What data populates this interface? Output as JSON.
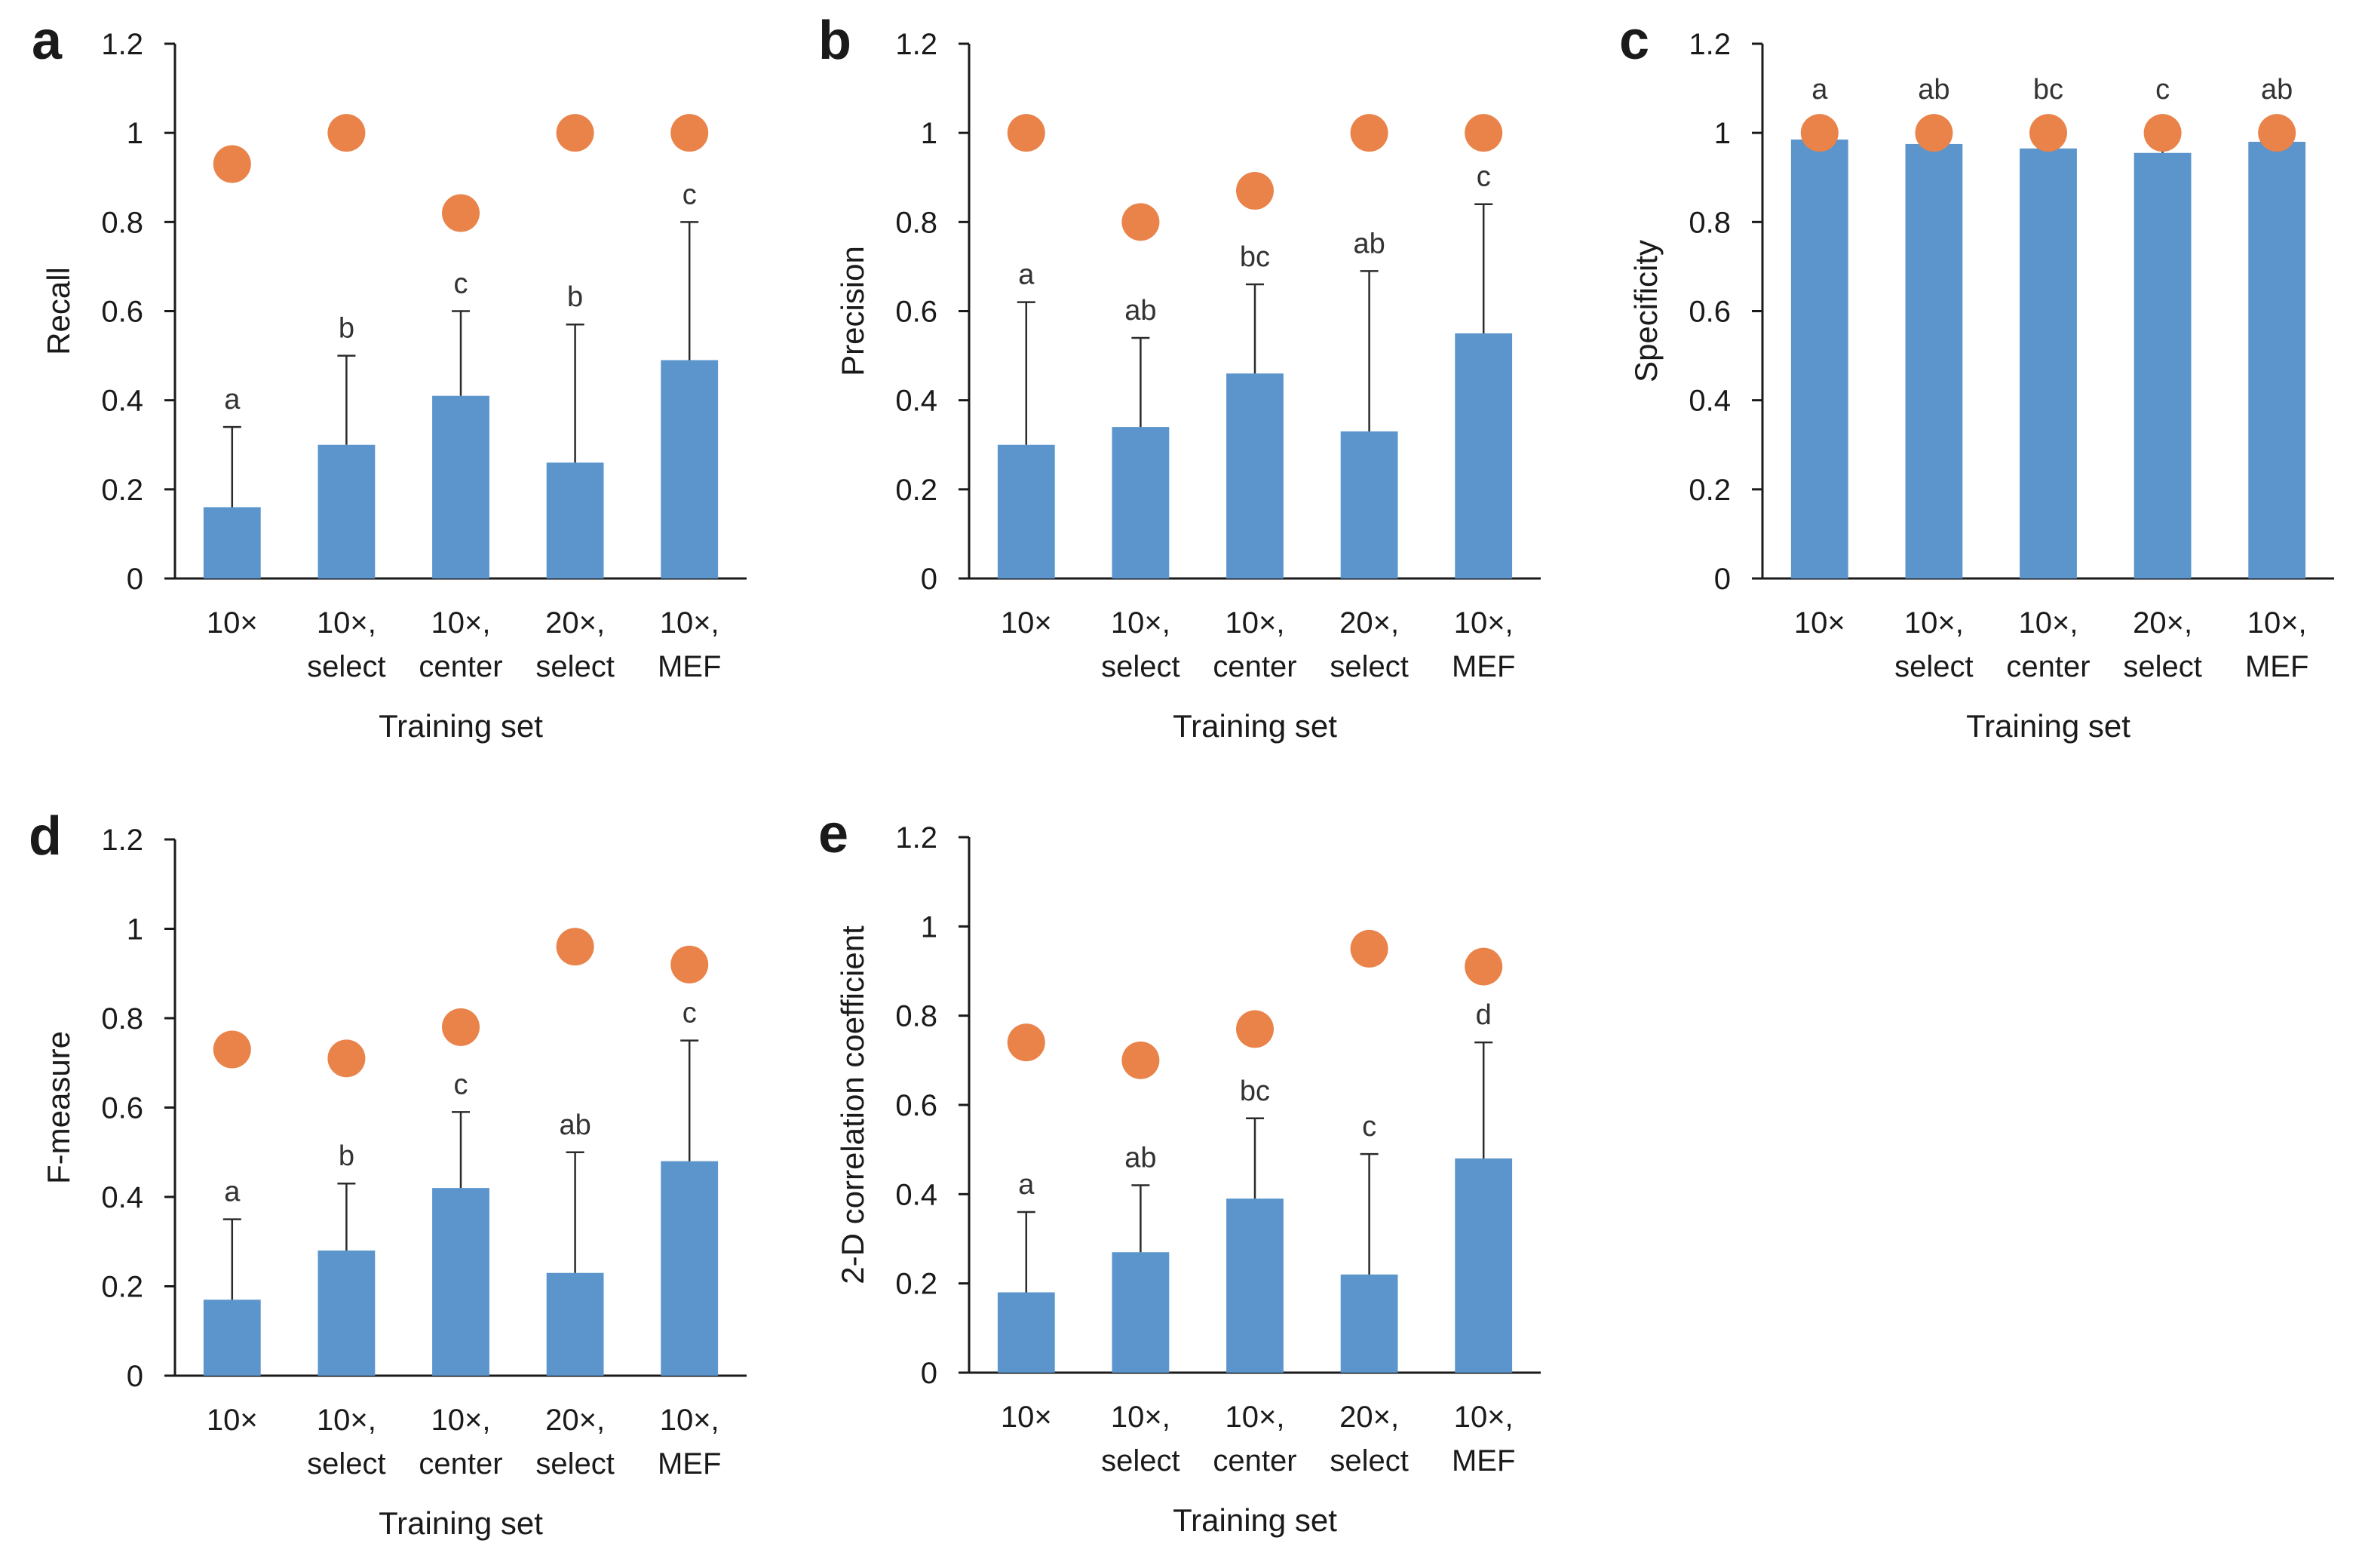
{
  "colors": {
    "bar": "#5b95cc",
    "dot": "#e9834a",
    "axis": "#1a1a1a",
    "text": "#1a1a1a"
  },
  "chart_data": [
    {
      "panel": "a",
      "type": "bar",
      "ylabel": "Recall",
      "xlabel": "Training set",
      "categories": [
        [
          "10×"
        ],
        [
          "10×,",
          "select"
        ],
        [
          "10×,",
          "center"
        ],
        [
          "20×,",
          "select"
        ],
        [
          "10×,",
          "MEF"
        ]
      ],
      "ylim": [
        0,
        1.2
      ],
      "yticks": [
        "0",
        "0.2",
        "0.4",
        "0.6",
        "0.8",
        "1",
        "1.2"
      ],
      "series": [
        {
          "name": "mean",
          "kind": "bar",
          "values": [
            0.16,
            0.3,
            0.41,
            0.26,
            0.49
          ]
        },
        {
          "name": "error",
          "kind": "errorbar",
          "values": [
            0.18,
            0.2,
            0.19,
            0.31,
            0.31
          ]
        },
        {
          "name": "best",
          "kind": "dot",
          "values": [
            0.93,
            1.0,
            0.82,
            1.0,
            1.0
          ]
        }
      ],
      "significance": [
        "a",
        "b",
        "c",
        "b",
        "c"
      ]
    },
    {
      "panel": "b",
      "type": "bar",
      "ylabel": "Precision",
      "xlabel": "Training set",
      "categories": [
        [
          "10×"
        ],
        [
          "10×,",
          "select"
        ],
        [
          "10×,",
          "center"
        ],
        [
          "20×,",
          "select"
        ],
        [
          "10×,",
          "MEF"
        ]
      ],
      "ylim": [
        0,
        1.2
      ],
      "yticks": [
        "0",
        "0.2",
        "0.4",
        "0.6",
        "0.8",
        "1",
        "1.2"
      ],
      "series": [
        {
          "name": "mean",
          "kind": "bar",
          "values": [
            0.3,
            0.34,
            0.46,
            0.33,
            0.55
          ]
        },
        {
          "name": "error",
          "kind": "errorbar",
          "values": [
            0.32,
            0.2,
            0.2,
            0.36,
            0.29
          ]
        },
        {
          "name": "best",
          "kind": "dot",
          "values": [
            1.0,
            0.8,
            0.87,
            1.0,
            1.0
          ]
        }
      ],
      "significance": [
        "a",
        "ab",
        "bc",
        "ab",
        "c"
      ]
    },
    {
      "panel": "c",
      "type": "bar",
      "ylabel": "Specificity",
      "xlabel": "Training set",
      "categories": [
        [
          "10×"
        ],
        [
          "10×,",
          "select"
        ],
        [
          "10×,",
          "center"
        ],
        [
          "20×,",
          "select"
        ],
        [
          "10×,",
          "MEF"
        ]
      ],
      "ylim": [
        0,
        1.2
      ],
      "yticks": [
        "0",
        "0.2",
        "0.4",
        "0.6",
        "0.8",
        "1",
        "1.2"
      ],
      "series": [
        {
          "name": "mean",
          "kind": "bar",
          "values": [
            0.985,
            0.975,
            0.965,
            0.955,
            0.98
          ]
        },
        {
          "name": "error",
          "kind": "errorbar",
          "values": [
            0.01,
            0.015,
            0.02,
            0.025,
            0.01
          ]
        },
        {
          "name": "best",
          "kind": "dot",
          "values": [
            1.0,
            1.0,
            1.0,
            1.0,
            1.0
          ]
        }
      ],
      "significance": [
        "a",
        "ab",
        "bc",
        "c",
        "ab"
      ],
      "sig_above": 1.1
    },
    {
      "panel": "d",
      "type": "bar",
      "ylabel": "F-measure",
      "xlabel": "Training set",
      "categories": [
        [
          "10×"
        ],
        [
          "10×,",
          "select"
        ],
        [
          "10×,",
          "center"
        ],
        [
          "20×,",
          "select"
        ],
        [
          "10×,",
          "MEF"
        ]
      ],
      "ylim": [
        0,
        1.2
      ],
      "yticks": [
        "0",
        "0.2",
        "0.4",
        "0.6",
        "0.8",
        "1",
        "1.2"
      ],
      "series": [
        {
          "name": "mean",
          "kind": "bar",
          "values": [
            0.17,
            0.28,
            0.42,
            0.23,
            0.48
          ]
        },
        {
          "name": "error",
          "kind": "errorbar",
          "values": [
            0.18,
            0.15,
            0.17,
            0.27,
            0.27
          ]
        },
        {
          "name": "best",
          "kind": "dot",
          "values": [
            0.73,
            0.71,
            0.78,
            0.96,
            0.92
          ]
        }
      ],
      "significance": [
        "a",
        "b",
        "c",
        "ab",
        "c"
      ]
    },
    {
      "panel": "e",
      "type": "bar",
      "ylabel": "2-D correlation coefficient",
      "xlabel": "Training set",
      "categories": [
        [
          "10×"
        ],
        [
          "10×,",
          "select"
        ],
        [
          "10×,",
          "center"
        ],
        [
          "20×,",
          "select"
        ],
        [
          "10×,",
          "MEF"
        ]
      ],
      "ylim": [
        0,
        1.2
      ],
      "yticks": [
        "0",
        "0.2",
        "0.4",
        "0.6",
        "0.8",
        "1",
        "1.2"
      ],
      "series": [
        {
          "name": "mean",
          "kind": "bar",
          "values": [
            0.18,
            0.27,
            0.39,
            0.22,
            0.48
          ]
        },
        {
          "name": "error",
          "kind": "errorbar",
          "values": [
            0.18,
            0.15,
            0.18,
            0.27,
            0.26
          ]
        },
        {
          "name": "best",
          "kind": "dot",
          "values": [
            0.74,
            0.7,
            0.77,
            0.95,
            0.91
          ]
        }
      ],
      "significance": [
        "a",
        "ab",
        "bc",
        "c",
        "d"
      ]
    }
  ]
}
